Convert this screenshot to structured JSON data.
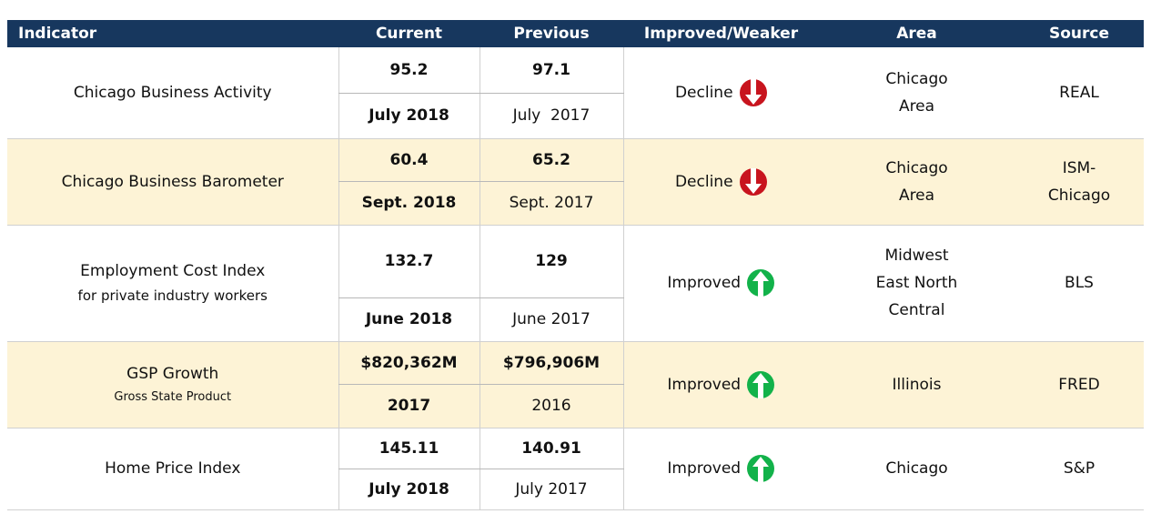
{
  "table": {
    "header": [
      "Indicator",
      "Current",
      "Previous",
      "Improved/Weaker",
      "Area",
      "Source"
    ],
    "rows": [
      {
        "indicator": "Chicago Business Activity",
        "current": "95.2",
        "current_date": "July 2018",
        "previous": "97.1",
        "previous_date": "July  2017",
        "trend": "Decline",
        "area": [
          "Chicago",
          "Area"
        ],
        "source": [
          "REAL"
        ]
      },
      {
        "indicator": "Chicago Business Barometer",
        "current": "60.4",
        "current_date": "Sept. 2018",
        "previous": "65.2",
        "previous_date": "Sept. 2017",
        "trend": "Decline",
        "area": [
          "Chicago",
          "Area"
        ],
        "source": [
          "ISM-",
          "Chicago"
        ]
      },
      {
        "indicator": "Employment Cost Index",
        "note": "for private industry workers",
        "current": "132.7",
        "current_date": "June 2018",
        "previous": "129",
        "previous_date": "June 2017",
        "trend": "Improved",
        "area": [
          "Midwest",
          "East North",
          "Central"
        ],
        "source": [
          "BLS"
        ]
      },
      {
        "indicator": "GSP Growth",
        "note": "Gross State Product",
        "current": "$820,362M",
        "current_date": "2017",
        "previous": "$796,906M",
        "previous_date": "2016",
        "trend": "Improved",
        "area": [
          "Illinois"
        ],
        "source": [
          "FRED"
        ]
      },
      {
        "indicator": "Home Price Index",
        "current": "145.11",
        "current_date": "July 2018",
        "previous": "140.91",
        "previous_date": "July 2017",
        "trend": "Improved",
        "area": [
          "Chicago"
        ],
        "source": [
          "S&P"
        ]
      }
    ]
  }
}
